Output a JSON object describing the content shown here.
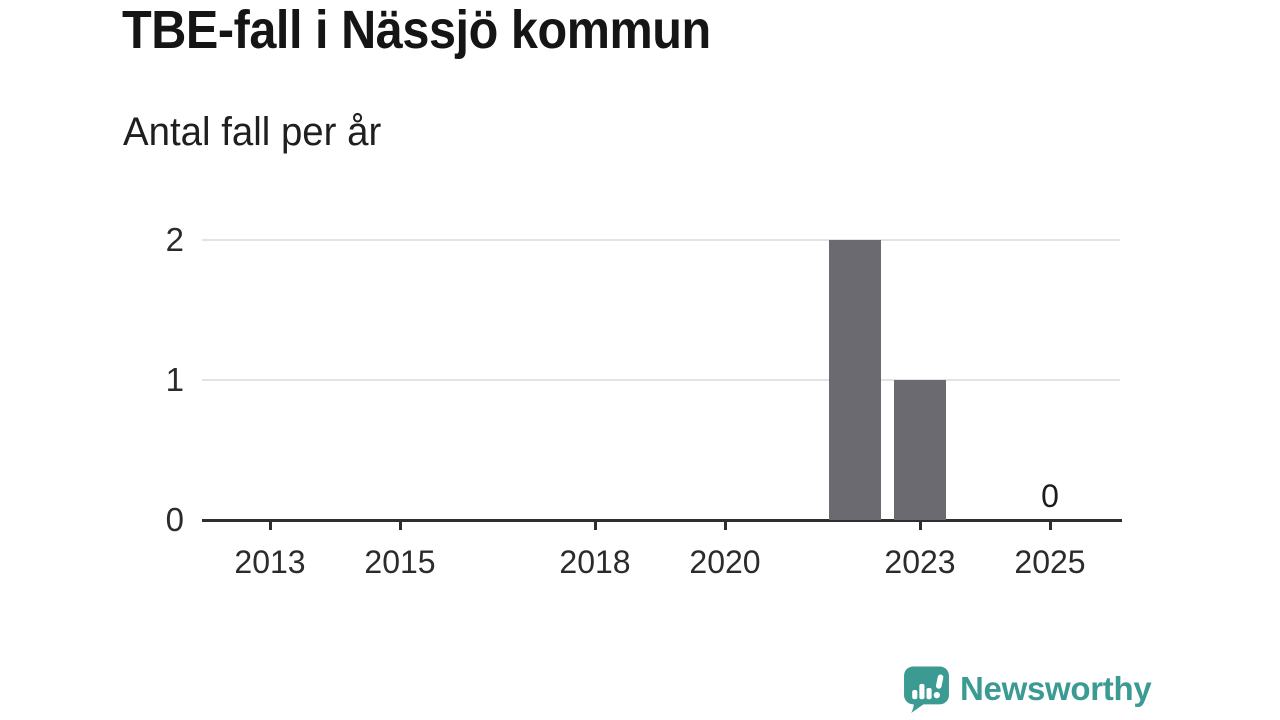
{
  "header": {
    "title": "TBE-fall i Nässjö kommun",
    "subtitle": "Antal fall per år"
  },
  "footer": {
    "brand": "Newsworthy"
  },
  "colors": {
    "bar": "#6B6A71",
    "axis": "#2E2E2E",
    "grid": "#E3E3E3",
    "tick_text": "#2B2B2B",
    "brand": "#3B9B93"
  },
  "chart_data": {
    "type": "bar",
    "title": "TBE-fall i Nässjö kommun",
    "subtitle": "Antal fall per år",
    "xlabel": "",
    "ylabel": "",
    "x_ticks": [
      2013,
      2015,
      2018,
      2020,
      2023,
      2025
    ],
    "y_ticks": [
      0,
      1,
      2
    ],
    "xlim": [
      2012,
      2026
    ],
    "ylim": [
      0,
      2
    ],
    "grid": true,
    "legend_position": "none",
    "bars": [
      {
        "year": 2022,
        "value": 2
      },
      {
        "year": 2023,
        "value": 1
      }
    ],
    "annotations": [
      {
        "year": 2025,
        "value": 0,
        "label": "0"
      }
    ]
  }
}
